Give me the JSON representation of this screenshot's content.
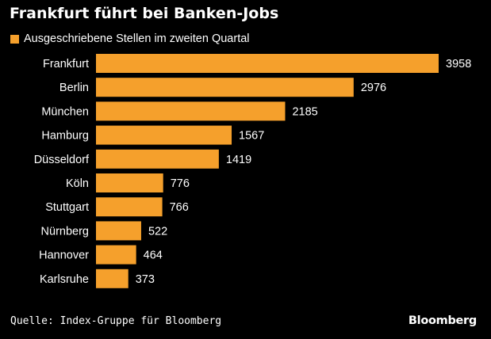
{
  "title": "Frankfurt führt bei Banken-Jobs",
  "legend": {
    "label": "Ausgeschriebene Stellen im zweiten Quartal"
  },
  "source": "Quelle: Index-Gruppe für Bloomberg",
  "brand": "Bloomberg",
  "colors": {
    "background": "#000000",
    "bar": "#f5a02c",
    "text": "#ffffff"
  },
  "chart_data": {
    "type": "bar",
    "orientation": "horizontal",
    "categories": [
      "Frankfurt",
      "Berlin",
      "München",
      "Hamburg",
      "Düsseldorf",
      "Köln",
      "Stuttgart",
      "Nürnberg",
      "Hannover",
      "Karlsruhe"
    ],
    "series": [
      {
        "name": "Ausgeschriebene Stellen im zweiten Quartal",
        "values": [
          3958,
          2976,
          2185,
          1567,
          1419,
          776,
          766,
          522,
          464,
          373
        ]
      }
    ],
    "data_labels": [
      "3958",
      "2976",
      "2185",
      "1567",
      "1419",
      "776",
      "766",
      "522",
      "464",
      "373"
    ],
    "xlim": [
      0,
      3958
    ],
    "grid": false,
    "legend_position": "top-left",
    "title": "Frankfurt führt bei Banken-Jobs"
  }
}
